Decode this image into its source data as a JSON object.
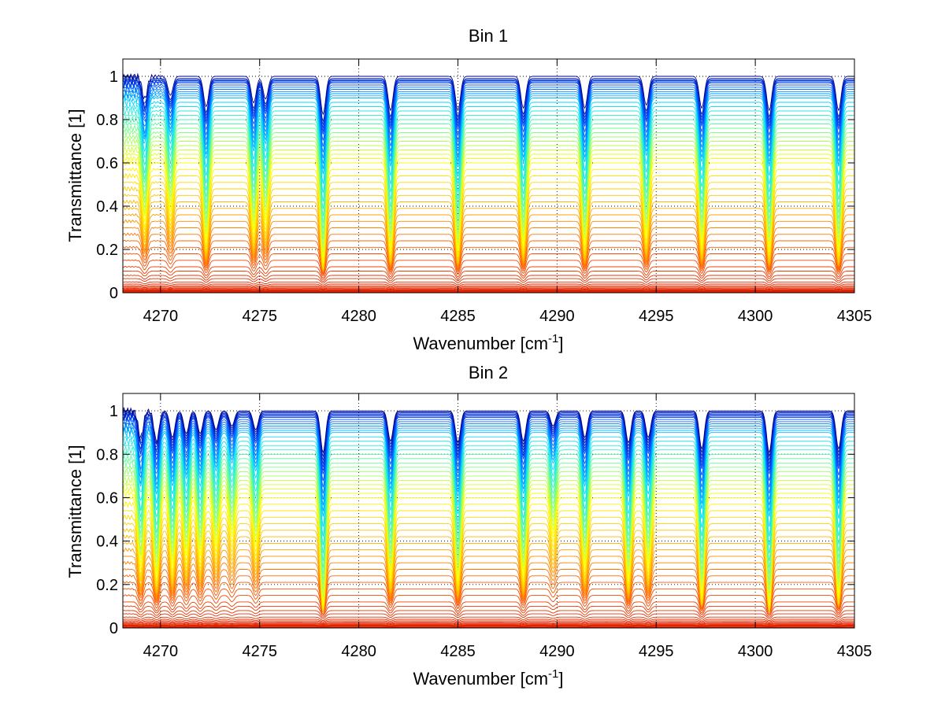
{
  "chart_data": [
    {
      "type": "line",
      "title": "Bin 1",
      "xlabel": "Wavenumber [cm",
      "xlabel_sup": "-1",
      "xlabel_end": "]",
      "ylabel": "Transmittance [1]",
      "xlim": [
        4268.1,
        4305
      ],
      "ylim": [
        0,
        1.08
      ],
      "xticks": [
        4270,
        4275,
        4280,
        4285,
        4290,
        4295,
        4300,
        4305
      ],
      "yticks": [
        0,
        0.2,
        0.4,
        0.6,
        0.8,
        1
      ],
      "xtick_labels": [
        "4270",
        "4275",
        "4280",
        "4285",
        "4290",
        "4295",
        "4300",
        "4305"
      ],
      "ytick_labels": [
        "0",
        "0.2",
        "0.4",
        "0.6",
        "0.8",
        "1"
      ],
      "grid": "dotted",
      "colormap": [
        "#00008f",
        "#0050ff",
        "#00dfff",
        "#70ff8f",
        "#ffff00",
        "#ffbf00",
        "#ff6000",
        "#e02000"
      ],
      "num_series": 60,
      "baseline_levels": [
        1.0,
        0.99,
        0.985,
        0.98,
        0.975,
        0.97,
        0.96,
        0.95,
        0.94,
        0.93,
        0.92,
        0.91,
        0.9,
        0.88,
        0.86,
        0.84,
        0.82,
        0.8,
        0.78,
        0.76,
        0.74,
        0.72,
        0.7,
        0.68,
        0.66,
        0.64,
        0.62,
        0.6,
        0.57,
        0.54,
        0.51,
        0.48,
        0.45,
        0.42,
        0.39,
        0.36,
        0.33,
        0.3,
        0.27,
        0.24,
        0.21,
        0.18,
        0.15,
        0.12,
        0.1,
        0.08,
        0.065,
        0.05,
        0.04,
        0.033,
        0.027,
        0.022,
        0.018,
        0.014,
        0.011,
        0.008,
        0.006,
        0.004,
        0.002,
        0.0
      ],
      "absorption_lines": [
        {
          "center": 4269.2,
          "depth": 0.3
        },
        {
          "center": 4270.5,
          "depth": 0.25
        },
        {
          "center": 4272.3,
          "depth": 0.4
        },
        {
          "center": 4274.7,
          "depth": 0.35
        },
        {
          "center": 4275.3,
          "depth": 0.3
        },
        {
          "center": 4278.2,
          "depth": 0.5
        },
        {
          "center": 4281.6,
          "depth": 0.45
        },
        {
          "center": 4285.0,
          "depth": 0.45
        },
        {
          "center": 4288.3,
          "depth": 0.42
        },
        {
          "center": 4291.4,
          "depth": 0.42
        },
        {
          "center": 4294.5,
          "depth": 0.38
        },
        {
          "center": 4297.3,
          "depth": 0.42
        },
        {
          "center": 4300.7,
          "depth": 0.45
        },
        {
          "center": 4304.2,
          "depth": 0.45
        }
      ]
    },
    {
      "type": "line",
      "title": "Bin 2",
      "xlabel": "Wavenumber [cm",
      "xlabel_sup": "-1",
      "xlabel_end": "]",
      "ylabel": "Transmittance [1]",
      "xlim": [
        4268.1,
        4305
      ],
      "ylim": [
        0,
        1.08
      ],
      "xticks": [
        4270,
        4275,
        4280,
        4285,
        4290,
        4295,
        4300,
        4305
      ],
      "yticks": [
        0,
        0.2,
        0.4,
        0.6,
        0.8,
        1
      ],
      "xtick_labels": [
        "4270",
        "4275",
        "4280",
        "4285",
        "4290",
        "4295",
        "4300",
        "4305"
      ],
      "ytick_labels": [
        "0",
        "0.2",
        "0.4",
        "0.6",
        "0.8",
        "1"
      ],
      "grid": "dotted",
      "colormap": [
        "#00008f",
        "#0050ff",
        "#00dfff",
        "#70ff8f",
        "#ffff00",
        "#ffbf00",
        "#ff6000",
        "#e02000"
      ],
      "num_series": 60,
      "baseline_levels": [
        1.0,
        0.995,
        0.99,
        0.985,
        0.98,
        0.975,
        0.97,
        0.96,
        0.95,
        0.94,
        0.93,
        0.92,
        0.91,
        0.9,
        0.88,
        0.86,
        0.84,
        0.82,
        0.8,
        0.78,
        0.76,
        0.74,
        0.72,
        0.7,
        0.68,
        0.66,
        0.64,
        0.62,
        0.6,
        0.57,
        0.54,
        0.51,
        0.48,
        0.45,
        0.42,
        0.39,
        0.36,
        0.33,
        0.3,
        0.27,
        0.24,
        0.21,
        0.18,
        0.15,
        0.12,
        0.1,
        0.08,
        0.065,
        0.05,
        0.04,
        0.033,
        0.027,
        0.022,
        0.018,
        0.014,
        0.011,
        0.008,
        0.006,
        0.003,
        0.0
      ],
      "absorption_lines": [
        {
          "center": 4269.0,
          "depth": 0.35
        },
        {
          "center": 4269.8,
          "depth": 0.4
        },
        {
          "center": 4270.6,
          "depth": 0.35
        },
        {
          "center": 4271.3,
          "depth": 0.3
        },
        {
          "center": 4272.0,
          "depth": 0.3
        },
        {
          "center": 4272.8,
          "depth": 0.25
        },
        {
          "center": 4273.6,
          "depth": 0.2
        },
        {
          "center": 4274.8,
          "depth": 0.25
        },
        {
          "center": 4278.2,
          "depth": 0.55
        },
        {
          "center": 4281.6,
          "depth": 0.4
        },
        {
          "center": 4285.0,
          "depth": 0.42
        },
        {
          "center": 4288.3,
          "depth": 0.4
        },
        {
          "center": 4289.8,
          "depth": 0.2
        },
        {
          "center": 4291.4,
          "depth": 0.35
        },
        {
          "center": 4293.6,
          "depth": 0.42
        },
        {
          "center": 4294.6,
          "depth": 0.35
        },
        {
          "center": 4297.3,
          "depth": 0.5
        },
        {
          "center": 4300.7,
          "depth": 0.55
        },
        {
          "center": 4304.2,
          "depth": 0.5
        }
      ]
    }
  ]
}
